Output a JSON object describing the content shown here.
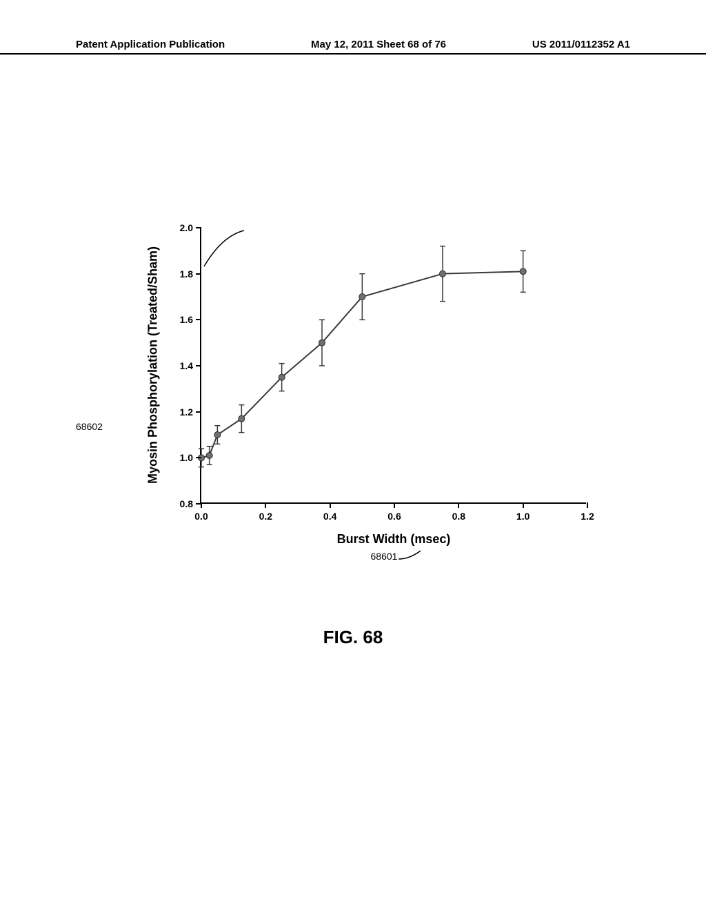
{
  "header": {
    "left": "Patent Application Publication",
    "center": "May 12, 2011  Sheet 68 of 76",
    "right": "US 2011/0112352 A1"
  },
  "figure_caption": "FIG. 68",
  "chart": {
    "type": "line",
    "xlabel": "Burst Width (msec)",
    "ylabel": "Myosin Phosphorylation (Treated/Sham)",
    "xlabel_ref": "68601",
    "ylabel_ref": "68602",
    "label_fontsize": 18,
    "tick_fontsize": 14,
    "xlim": [
      0.0,
      1.2
    ],
    "ylim": [
      0.8,
      2.0
    ],
    "xticks": [
      0.0,
      0.2,
      0.4,
      0.6,
      0.8,
      1.0,
      1.2
    ],
    "yticks": [
      0.8,
      1.0,
      1.2,
      1.4,
      1.6,
      1.8,
      2.0
    ],
    "line_color": "#3a3a3a",
    "marker_fill": "#707070",
    "marker_edge": "#2a2a2a",
    "marker_radius": 4.5,
    "line_width": 2,
    "errorbar_width": 1.5,
    "errorbar_cap": 8,
    "background_color": "#ffffff",
    "points": [
      {
        "x": 0.0,
        "y": 1.0,
        "err": 0.04
      },
      {
        "x": 0.025,
        "y": 1.01,
        "err": 0.04
      },
      {
        "x": 0.05,
        "y": 1.1,
        "err": 0.04
      },
      {
        "x": 0.125,
        "y": 1.17,
        "err": 0.06
      },
      {
        "x": 0.25,
        "y": 1.35,
        "err": 0.06
      },
      {
        "x": 0.375,
        "y": 1.5,
        "err": 0.1
      },
      {
        "x": 0.5,
        "y": 1.7,
        "err": 0.1
      },
      {
        "x": 0.75,
        "y": 1.8,
        "err": 0.12
      },
      {
        "x": 1.0,
        "y": 1.81,
        "err": 0.09
      }
    ]
  }
}
